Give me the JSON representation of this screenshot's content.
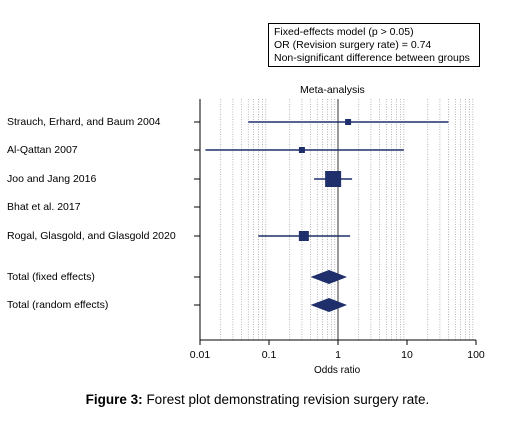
{
  "chart_data": {
    "type": "forest",
    "title": "Meta-analysis",
    "xlabel": "Odds ratio",
    "xscale": "log",
    "xlim": [
      0.01,
      100
    ],
    "xticks": [
      "0.01",
      "0.1",
      "1",
      "10",
      "100"
    ],
    "grid": true,
    "info_box": [
      "Fixed-effects model (p > 0.05)",
      "OR (Revision surgery rate) = 0.74",
      "Non-significant difference between groups"
    ],
    "studies": [
      {
        "name": "Strauch, Erhard, and Baum 2004",
        "or": 1.4,
        "lower": 0.05,
        "upper": 40
      },
      {
        "name": "Al-Qattan 2007",
        "or": 0.3,
        "lower": 0.012,
        "upper": 9
      },
      {
        "name": "Joo and Jang 2016",
        "or": 0.85,
        "lower": 0.45,
        "upper": 1.6
      },
      {
        "name": "Bhat et al. 2017",
        "or": null,
        "lower": null,
        "upper": null
      },
      {
        "name": "Rogal, Glasgold, and Glasgold 2020",
        "or": 0.32,
        "lower": 0.07,
        "upper": 1.5
      }
    ],
    "totals": [
      {
        "name": "Total (fixed effects)",
        "or": 0.74,
        "lower": 0.4,
        "upper": 1.35
      },
      {
        "name": "Total (random effects)",
        "or": 0.74,
        "lower": 0.4,
        "upper": 1.35
      }
    ],
    "color": "#1f2f6b"
  },
  "caption": {
    "label": "Figure 3:",
    "text": " Forest plot demonstrating revision surgery rate."
  }
}
